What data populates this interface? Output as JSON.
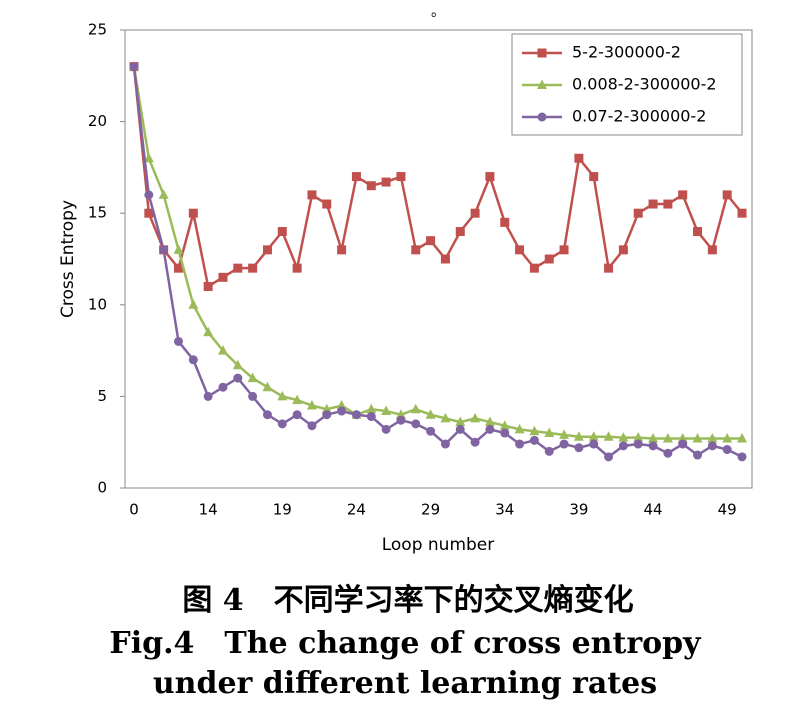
{
  "chart_data": {
    "type": "line",
    "note": "。",
    "xlabel": "Loop number",
    "ylabel": "Cross Entropy",
    "caption": [
      "图 4　不同学习率下的交叉熵变化",
      "Fig.4　The change of cross entropy",
      "under different learning rates"
    ],
    "categories": [
      "0",
      null,
      null,
      null,
      null,
      "14",
      null,
      null,
      null,
      null,
      "19",
      null,
      null,
      null,
      null,
      "24",
      null,
      null,
      null,
      null,
      "29",
      null,
      null,
      null,
      null,
      "34",
      null,
      null,
      null,
      null,
      "39",
      null,
      null,
      null,
      null,
      "44",
      null,
      null,
      null,
      null,
      "49",
      null
    ],
    "ylim": [
      0,
      25
    ],
    "yticks": [
      0,
      5,
      10,
      15,
      20,
      25
    ],
    "grid": false,
    "legend": "upper right",
    "series": [
      {
        "name": "5-2-300000-2",
        "color": "#c0504d",
        "marker": "square",
        "values": [
          23,
          15,
          13,
          12,
          15,
          11,
          11.5,
          12,
          12,
          13,
          14,
          12,
          16,
          15.5,
          13,
          17,
          16.5,
          16.7,
          17,
          13,
          13.5,
          12.5,
          14,
          15,
          17,
          14.5,
          13,
          12,
          12.5,
          13,
          18,
          17,
          12,
          13,
          15,
          15.5,
          15.5,
          16,
          14,
          13,
          16,
          15
        ]
      },
      {
        "name": "0.008-2-300000-2",
        "color": "#9bbb59",
        "marker": "triangle",
        "values": [
          23,
          18,
          16,
          13,
          10,
          8.5,
          7.5,
          6.7,
          6,
          5.5,
          5,
          4.8,
          4.5,
          4.3,
          4.5,
          4,
          4.3,
          4.2,
          4,
          4.3,
          4,
          3.8,
          3.6,
          3.8,
          3.6,
          3.4,
          3.2,
          3.1,
          3,
          2.9,
          2.8,
          2.8,
          2.8,
          2.75,
          2.75,
          2.7,
          2.7,
          2.7,
          2.7,
          2.7,
          2.7,
          2.7
        ]
      },
      {
        "name": "0.07-2-300000-2",
        "color": "#8064a2",
        "marker": "circle",
        "values": [
          23,
          16,
          13,
          8,
          7,
          5,
          5.5,
          6,
          5,
          4,
          3.5,
          4,
          3.4,
          4,
          4.2,
          4,
          3.9,
          3.2,
          3.7,
          3.5,
          3.1,
          2.4,
          3.2,
          2.5,
          3.2,
          3,
          2.4,
          2.6,
          2,
          2.4,
          2.2,
          2.4,
          1.7,
          2.3,
          2.4,
          2.3,
          1.9,
          2.4,
          1.8,
          2.3,
          2.1,
          1.7
        ]
      }
    ]
  }
}
